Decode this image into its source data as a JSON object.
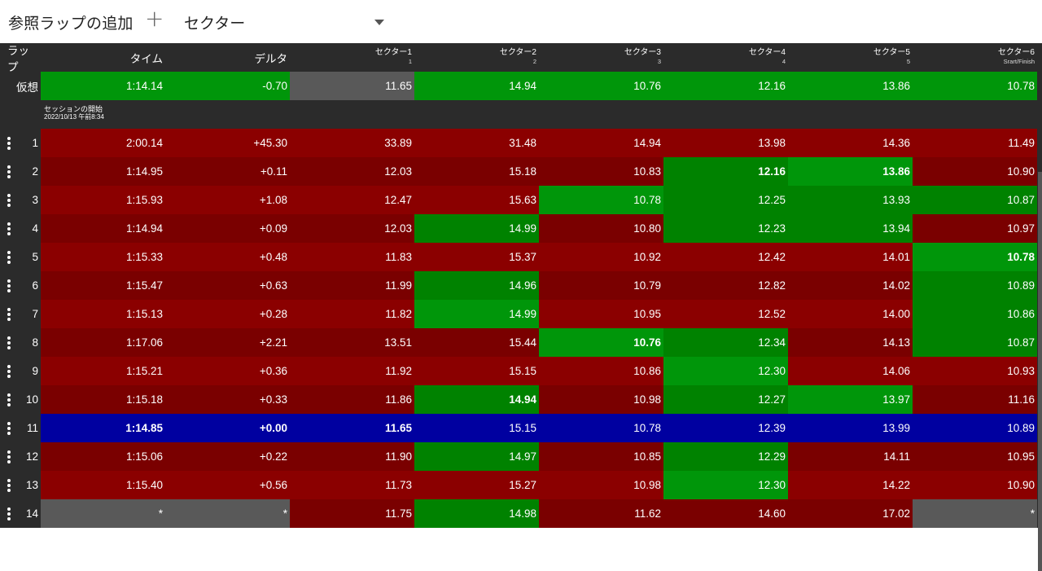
{
  "toolbar": {
    "title": "参照ラップの追加",
    "add_icon": "plus-icon",
    "sector_select_value": "セクター",
    "dropdown_icon": "caret-down-icon"
  },
  "colors": {
    "red": "#8b0000",
    "red_dark": "#7a0000",
    "green": "#00960a",
    "green_dark": "#008200",
    "gray": "#595959",
    "blue": "#0000a0",
    "bg": "#2b2b2b"
  },
  "header": {
    "lap": "ラップ",
    "time": "タイム",
    "delta": "デルタ",
    "sectors": [
      {
        "name": "セクター1",
        "sub": "1"
      },
      {
        "name": "セクター2",
        "sub": "2"
      },
      {
        "name": "セクター3",
        "sub": "3"
      },
      {
        "name": "セクター4",
        "sub": "4"
      },
      {
        "name": "セクター5",
        "sub": "5"
      },
      {
        "name": "セクター6",
        "sub": "Srart/Finish"
      }
    ]
  },
  "ideal": {
    "label": "仮想",
    "time": "1:14.14",
    "delta": "-0.70",
    "sectors": [
      "11.65",
      "14.94",
      "10.76",
      "12.16",
      "13.86",
      "10.78"
    ]
  },
  "session": {
    "title": "セッションの開始",
    "datetime": "2022/10/13 午前8:34"
  },
  "laps": [
    {
      "lap": "1",
      "time": "2:00.14",
      "delta": "+45.30",
      "sectors": [
        "33.89",
        "31.48",
        "14.94",
        "13.98",
        "14.36",
        "11.49"
      ],
      "colors": [
        "r",
        "r",
        "r",
        "r",
        "r",
        "r",
        "r",
        "r"
      ],
      "bold": []
    },
    {
      "lap": "2",
      "time": "1:14.95",
      "delta": "+0.11",
      "sectors": [
        "12.03",
        "15.18",
        "10.83",
        "12.16",
        "13.86",
        "10.90"
      ],
      "colors": [
        "rd",
        "rd",
        "rd",
        "rd",
        "rd",
        "gd",
        "g",
        "rd"
      ],
      "bold": [
        5,
        6
      ]
    },
    {
      "lap": "3",
      "time": "1:15.93",
      "delta": "+1.08",
      "sectors": [
        "12.47",
        "15.63",
        "10.78",
        "12.25",
        "13.93",
        "10.87"
      ],
      "colors": [
        "r",
        "r",
        "r",
        "r",
        "g",
        "gd",
        "gd",
        "gd"
      ],
      "bold": []
    },
    {
      "lap": "4",
      "time": "1:14.94",
      "delta": "+0.09",
      "sectors": [
        "12.03",
        "14.99",
        "10.80",
        "12.23",
        "13.94",
        "10.97"
      ],
      "colors": [
        "rd",
        "rd",
        "rd",
        "gd",
        "rd",
        "gd",
        "gd",
        "rd"
      ],
      "bold": []
    },
    {
      "lap": "5",
      "time": "1:15.33",
      "delta": "+0.48",
      "sectors": [
        "11.83",
        "15.37",
        "10.92",
        "12.42",
        "14.01",
        "10.78"
      ],
      "colors": [
        "r",
        "r",
        "r",
        "r",
        "r",
        "r",
        "r",
        "g"
      ],
      "bold": [
        7
      ]
    },
    {
      "lap": "6",
      "time": "1:15.47",
      "delta": "+0.63",
      "sectors": [
        "11.99",
        "14.96",
        "10.79",
        "12.82",
        "14.02",
        "10.89"
      ],
      "colors": [
        "rd",
        "rd",
        "rd",
        "gd",
        "rd",
        "rd",
        "rd",
        "gd"
      ],
      "bold": []
    },
    {
      "lap": "7",
      "time": "1:15.13",
      "delta": "+0.28",
      "sectors": [
        "11.82",
        "14.99",
        "10.95",
        "12.52",
        "14.00",
        "10.86"
      ],
      "colors": [
        "r",
        "r",
        "r",
        "g",
        "r",
        "r",
        "r",
        "gd"
      ],
      "bold": []
    },
    {
      "lap": "8",
      "time": "1:17.06",
      "delta": "+2.21",
      "sectors": [
        "13.51",
        "15.44",
        "10.76",
        "12.34",
        "14.13",
        "10.87"
      ],
      "colors": [
        "rd",
        "rd",
        "rd",
        "rd",
        "g",
        "gd",
        "rd",
        "gd"
      ],
      "bold": [
        4
      ]
    },
    {
      "lap": "9",
      "time": "1:15.21",
      "delta": "+0.36",
      "sectors": [
        "11.92",
        "15.15",
        "10.86",
        "12.30",
        "14.06",
        "10.93"
      ],
      "colors": [
        "r",
        "r",
        "r",
        "r",
        "r",
        "g",
        "r",
        "r"
      ],
      "bold": []
    },
    {
      "lap": "10",
      "time": "1:15.18",
      "delta": "+0.33",
      "sectors": [
        "11.86",
        "14.94",
        "10.98",
        "12.27",
        "13.97",
        "11.16"
      ],
      "colors": [
        "rd",
        "rd",
        "rd",
        "gd",
        "rd",
        "gd",
        "g",
        "rd"
      ],
      "bold": [
        3
      ]
    },
    {
      "lap": "11",
      "time": "1:14.85",
      "delta": "+0.00",
      "sectors": [
        "11.65",
        "15.15",
        "10.78",
        "12.39",
        "13.99",
        "10.89"
      ],
      "colors": [
        "b",
        "b",
        "b",
        "b",
        "b",
        "b",
        "b",
        "b"
      ],
      "bold": [
        0,
        1,
        2
      ]
    },
    {
      "lap": "12",
      "time": "1:15.06",
      "delta": "+0.22",
      "sectors": [
        "11.90",
        "14.97",
        "10.85",
        "12.29",
        "14.11",
        "10.95"
      ],
      "colors": [
        "rd",
        "rd",
        "rd",
        "gd",
        "rd",
        "gd",
        "rd",
        "rd"
      ],
      "bold": []
    },
    {
      "lap": "13",
      "time": "1:15.40",
      "delta": "+0.56",
      "sectors": [
        "11.73",
        "15.27",
        "10.98",
        "12.30",
        "14.22",
        "10.90"
      ],
      "colors": [
        "r",
        "r",
        "r",
        "r",
        "r",
        "g",
        "r",
        "r"
      ],
      "bold": []
    },
    {
      "lap": "14",
      "time": "*",
      "delta": "*",
      "sectors": [
        "11.75",
        "14.98",
        "11.62",
        "14.60",
        "17.02",
        "*"
      ],
      "colors": [
        "gr",
        "gr",
        "rd",
        "gd",
        "rd",
        "rd",
        "rd",
        "gr"
      ],
      "bold": []
    }
  ]
}
